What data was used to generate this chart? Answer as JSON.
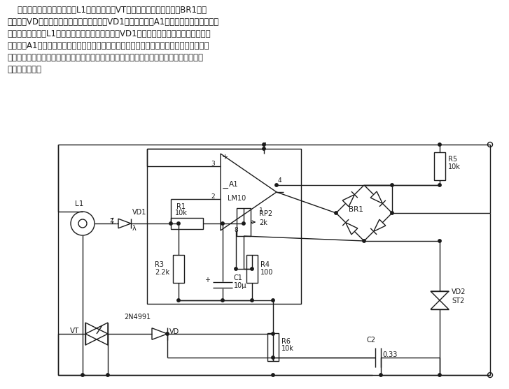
{
  "bg_color": "#ffffff",
  "line_color": "#1a1a1a",
  "lw": 1.0,
  "fs": 7.5,
  "title_lines": [
    "    图中主电路由交流电源、灯L1和双向晶阀管VT组成，触发电路由整流桥BR1、触",
    "发二极管VD等组成，反馈电路由光敏二极管VD1、运算放大器A1等组成。一旦由于电源电",
    "压变化等原因使灯L1的亮度发生变化，光敏二极管VD1上的信号也发生变化，其输出经运",
    "算放大器A1加在整流桥的对角线上，从而使触发二极管的导通时刻发生变化，即双向晶阀管",
    "的控制角发生变化，从而使晶阀管输出的交流电压也发生变化，使灯上所加的电压和亮度近",
    "似能保持不变。"
  ]
}
